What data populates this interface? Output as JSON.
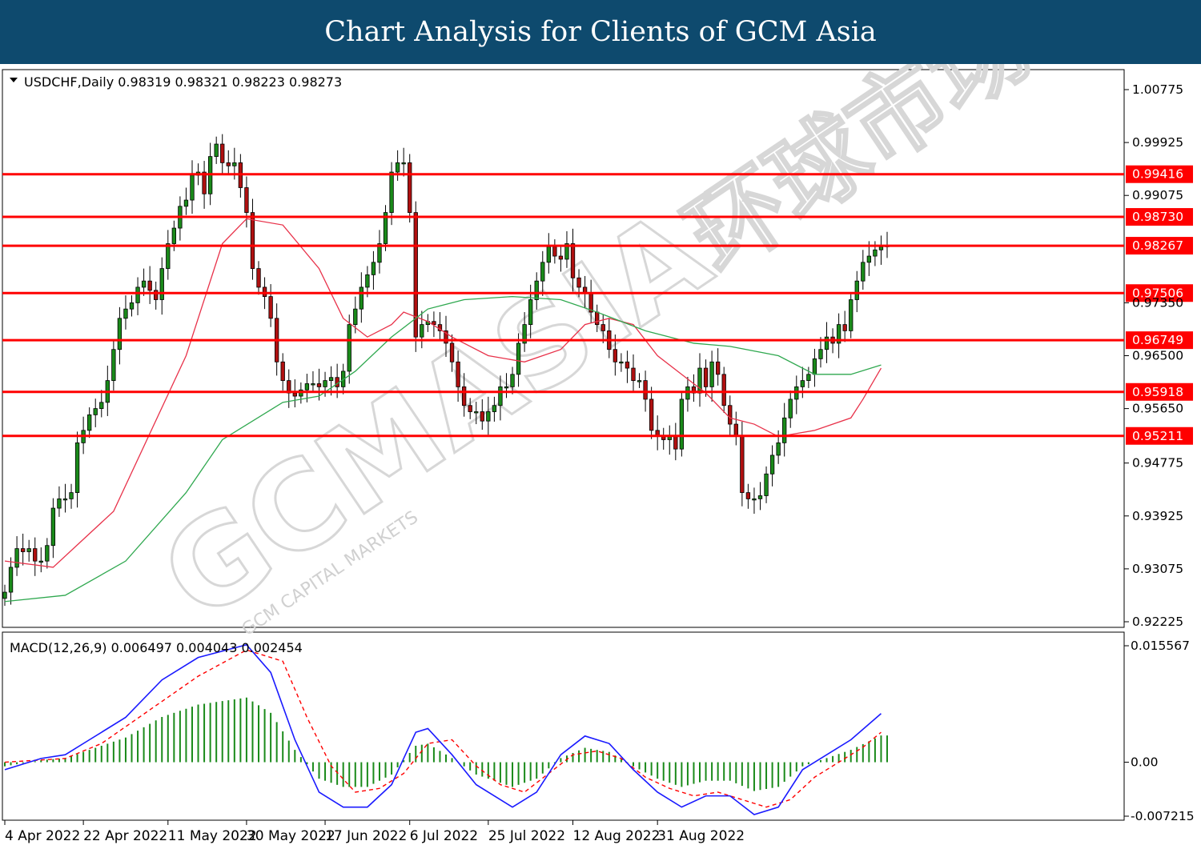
{
  "header": {
    "title": "Chart Analysis for Clients of GCM Asia"
  },
  "watermark": {
    "brand": "GCMASIA",
    "sub": "GCM CAPITAL MARKETS",
    "cn": "环球市场"
  },
  "colors": {
    "header_bg": "#0e4a6e",
    "sr_line": "#ff0000",
    "bull": "#1a8a1a",
    "bear": "#b01010",
    "ma_fast": "#e8324a",
    "ma_slow": "#2fa84f",
    "macd_line": "#1a1aff",
    "signal_line": "#ff0000",
    "hist": "#1a8a1a"
  },
  "chart_data": [
    {
      "type": "candlestick",
      "info_text": "USDCHF,Daily  0.98319 0.98321 0.98223 0.98273",
      "symbol": "USDCHF",
      "timeframe": "Daily",
      "ohlc_last": [
        0.98319,
        0.98321,
        0.98223,
        0.98273
      ],
      "ylim": [
        0.92225,
        1.00775
      ],
      "y_ticks": [
        "1.00775",
        "0.99925",
        "0.99075",
        "0.97350",
        "0.96500",
        "0.95650",
        "0.94775",
        "0.93925",
        "0.93075",
        "0.92225"
      ],
      "x_ticks": [
        "4 Apr 2022",
        "22 Apr 2022",
        "11 May 2022",
        "30 May 2022",
        "17 Jun 2022",
        "6 Jul 2022",
        "25 Jul 2022",
        "12 Aug 2022",
        "31 Aug 2022"
      ],
      "levels": [
        "0.99416",
        "0.98730",
        "0.98267",
        "0.97506",
        "0.96749",
        "0.95918",
        "0.95211"
      ],
      "closes": [
        0.927,
        0.931,
        0.934,
        0.9335,
        0.934,
        0.932,
        0.932,
        0.9345,
        0.9405,
        0.942,
        0.942,
        0.943,
        0.951,
        0.953,
        0.9555,
        0.9565,
        0.9575,
        0.961,
        0.966,
        0.971,
        0.9725,
        0.9735,
        0.976,
        0.977,
        0.9755,
        0.974,
        0.979,
        0.983,
        0.9855,
        0.989,
        0.99,
        0.994,
        0.9945,
        0.991,
        0.997,
        0.999,
        0.996,
        0.9955,
        0.996,
        0.992,
        0.988,
        0.979,
        0.976,
        0.9745,
        0.971,
        0.964,
        0.961,
        0.959,
        0.9585,
        0.9595,
        0.9605,
        0.9605,
        0.96,
        0.961,
        0.9615,
        0.96,
        0.9625,
        0.97,
        0.9725,
        0.976,
        0.978,
        0.98,
        0.983,
        0.988,
        0.9945,
        0.996,
        0.996,
        0.988,
        0.968,
        0.97,
        0.9705,
        0.97,
        0.969,
        0.967,
        0.964,
        0.96,
        0.957,
        0.956,
        0.956,
        0.9545,
        0.956,
        0.957,
        0.96,
        0.96,
        0.962,
        0.967,
        0.97,
        0.974,
        0.977,
        0.98,
        0.9825,
        0.981,
        0.9805,
        0.983,
        0.9775,
        0.976,
        0.975,
        0.972,
        0.97,
        0.969,
        0.966,
        0.964,
        0.964,
        0.963,
        0.961,
        0.961,
        0.958,
        0.953,
        0.952,
        0.9515,
        0.952,
        0.95,
        0.958,
        0.96,
        0.959,
        0.963,
        0.96,
        0.964,
        0.962,
        0.957,
        0.954,
        0.952,
        0.943,
        0.942,
        0.942,
        0.9425,
        0.946,
        0.949,
        0.951,
        0.955,
        0.958,
        0.96,
        0.961,
        0.962,
        0.9645,
        0.966,
        0.968,
        0.967,
        0.97,
        0.969,
        0.974,
        0.977,
        0.98,
        0.981,
        0.982,
        0.9825,
        0.9827
      ],
      "ma_fast": {
        "start": 0.932,
        "points": [
          [
            0,
            0.932
          ],
          [
            8,
            0.931
          ],
          [
            18,
            0.94
          ],
          [
            30,
            0.965
          ],
          [
            36,
            0.983
          ],
          [
            40,
            0.987
          ],
          [
            46,
            0.986
          ],
          [
            52,
            0.979
          ],
          [
            56,
            0.971
          ],
          [
            60,
            0.968
          ],
          [
            64,
            0.97
          ],
          [
            66,
            0.972
          ],
          [
            70,
            0.9705
          ],
          [
            74,
            0.968
          ],
          [
            80,
            0.965
          ],
          [
            86,
            0.964
          ],
          [
            92,
            0.966
          ],
          [
            96,
            0.97
          ],
          [
            100,
            0.971
          ],
          [
            104,
            0.97
          ],
          [
            108,
            0.965
          ],
          [
            112,
            0.962
          ],
          [
            116,
            0.959
          ],
          [
            120,
            0.955
          ],
          [
            124,
            0.954
          ],
          [
            128,
            0.952
          ],
          [
            134,
            0.953
          ],
          [
            140,
            0.955
          ],
          [
            142,
            0.958
          ],
          [
            145,
            0.963
          ]
        ]
      },
      "ma_slow": {
        "points": [
          [
            0,
            0.9255
          ],
          [
            10,
            0.9265
          ],
          [
            20,
            0.932
          ],
          [
            30,
            0.943
          ],
          [
            36,
            0.9515
          ],
          [
            46,
            0.9575
          ],
          [
            52,
            0.9585
          ],
          [
            58,
            0.9625
          ],
          [
            64,
            0.968
          ],
          [
            70,
            0.9725
          ],
          [
            76,
            0.974
          ],
          [
            84,
            0.9745
          ],
          [
            92,
            0.974
          ],
          [
            98,
            0.972
          ],
          [
            106,
            0.969
          ],
          [
            114,
            0.967
          ],
          [
            120,
            0.9665
          ],
          [
            128,
            0.965
          ],
          [
            134,
            0.962
          ],
          [
            140,
            0.962
          ],
          [
            145,
            0.9635
          ]
        ]
      }
    },
    {
      "type": "macd",
      "info_text": "MACD(12,26,9) 0.006497 0.004043 0.002454",
      "params": [
        12,
        26,
        9
      ],
      "values": [
        0.006497,
        0.004043,
        0.002454
      ],
      "ylim": [
        -0.007215,
        0.015567
      ],
      "y_ticks": [
        "0.015567",
        "0.00",
        "-0.007215"
      ],
      "macd_points": [
        [
          0,
          -0.001
        ],
        [
          6,
          0.0005
        ],
        [
          10,
          0.001
        ],
        [
          14,
          0.003
        ],
        [
          20,
          0.006
        ],
        [
          26,
          0.011
        ],
        [
          32,
          0.014
        ],
        [
          40,
          0.0157
        ],
        [
          44,
          0.012
        ],
        [
          48,
          0.003
        ],
        [
          52,
          -0.004
        ],
        [
          56,
          -0.006
        ],
        [
          60,
          -0.006
        ],
        [
          64,
          -0.003
        ],
        [
          68,
          0.004
        ],
        [
          70,
          0.0045
        ],
        [
          74,
          0.001
        ],
        [
          78,
          -0.003
        ],
        [
          84,
          -0.006
        ],
        [
          88,
          -0.004
        ],
        [
          92,
          0.001
        ],
        [
          96,
          0.0035
        ],
        [
          100,
          0.0025
        ],
        [
          104,
          -0.001
        ],
        [
          108,
          -0.004
        ],
        [
          112,
          -0.006
        ],
        [
          116,
          -0.0045
        ],
        [
          120,
          -0.0045
        ],
        [
          124,
          -0.007
        ],
        [
          128,
          -0.006
        ],
        [
          132,
          -0.001
        ],
        [
          136,
          0.001
        ],
        [
          140,
          0.003
        ],
        [
          145,
          0.0065
        ]
      ],
      "signal_points": [
        [
          0,
          0.0
        ],
        [
          10,
          0.0005
        ],
        [
          16,
          0.0025
        ],
        [
          24,
          0.007
        ],
        [
          32,
          0.0115
        ],
        [
          40,
          0.015
        ],
        [
          46,
          0.0135
        ],
        [
          50,
          0.006
        ],
        [
          54,
          -0.0005
        ],
        [
          58,
          -0.004
        ],
        [
          62,
          -0.0035
        ],
        [
          66,
          -0.0015
        ],
        [
          70,
          0.0025
        ],
        [
          74,
          0.003
        ],
        [
          78,
          -0.0005
        ],
        [
          82,
          -0.003
        ],
        [
          86,
          -0.004
        ],
        [
          90,
          -0.0015
        ],
        [
          94,
          0.001
        ],
        [
          98,
          0.0015
        ],
        [
          102,
          0.0005
        ],
        [
          106,
          -0.002
        ],
        [
          110,
          -0.0035
        ],
        [
          114,
          -0.0045
        ],
        [
          118,
          -0.004
        ],
        [
          122,
          -0.005
        ],
        [
          126,
          -0.006
        ],
        [
          130,
          -0.005
        ],
        [
          134,
          -0.002
        ],
        [
          138,
          0.0
        ],
        [
          142,
          0.002
        ],
        [
          145,
          0.004
        ]
      ]
    }
  ]
}
